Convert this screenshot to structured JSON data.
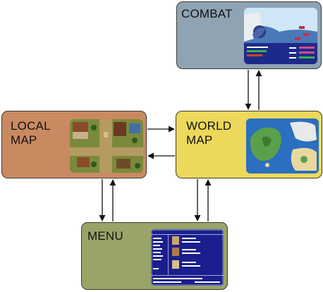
{
  "nodes": {
    "combat": {
      "label": "COMBAT",
      "color": "#8fa3b2"
    },
    "local_map": {
      "label": "LOCAL\nMAP",
      "color": "#c98a62"
    },
    "world_map": {
      "label": "WORLD\nMAP",
      "color": "#ecd85a"
    },
    "menu": {
      "label": "MENU",
      "color": "#98a468"
    }
  },
  "edges": [
    {
      "from": "combat",
      "to": "world_map"
    },
    {
      "from": "world_map",
      "to": "combat"
    },
    {
      "from": "local_map",
      "to": "world_map"
    },
    {
      "from": "world_map",
      "to": "local_map"
    },
    {
      "from": "local_map",
      "to": "menu"
    },
    {
      "from": "menu",
      "to": "local_map"
    },
    {
      "from": "world_map",
      "to": "menu"
    },
    {
      "from": "menu",
      "to": "world_map"
    }
  ],
  "colors": {
    "border": "#3a3a3a",
    "arrow": "#111111",
    "combat_sky": "#cfe6f7",
    "combat_sea": "#4a78b8",
    "combat_ui": "#1e2a8a",
    "town_ground": "#7a8a3a",
    "town_road": "#b59a62",
    "world_sea": "#2a6fc0",
    "world_land": "#5aa04a",
    "menu_panel": "#1a1e8e"
  }
}
